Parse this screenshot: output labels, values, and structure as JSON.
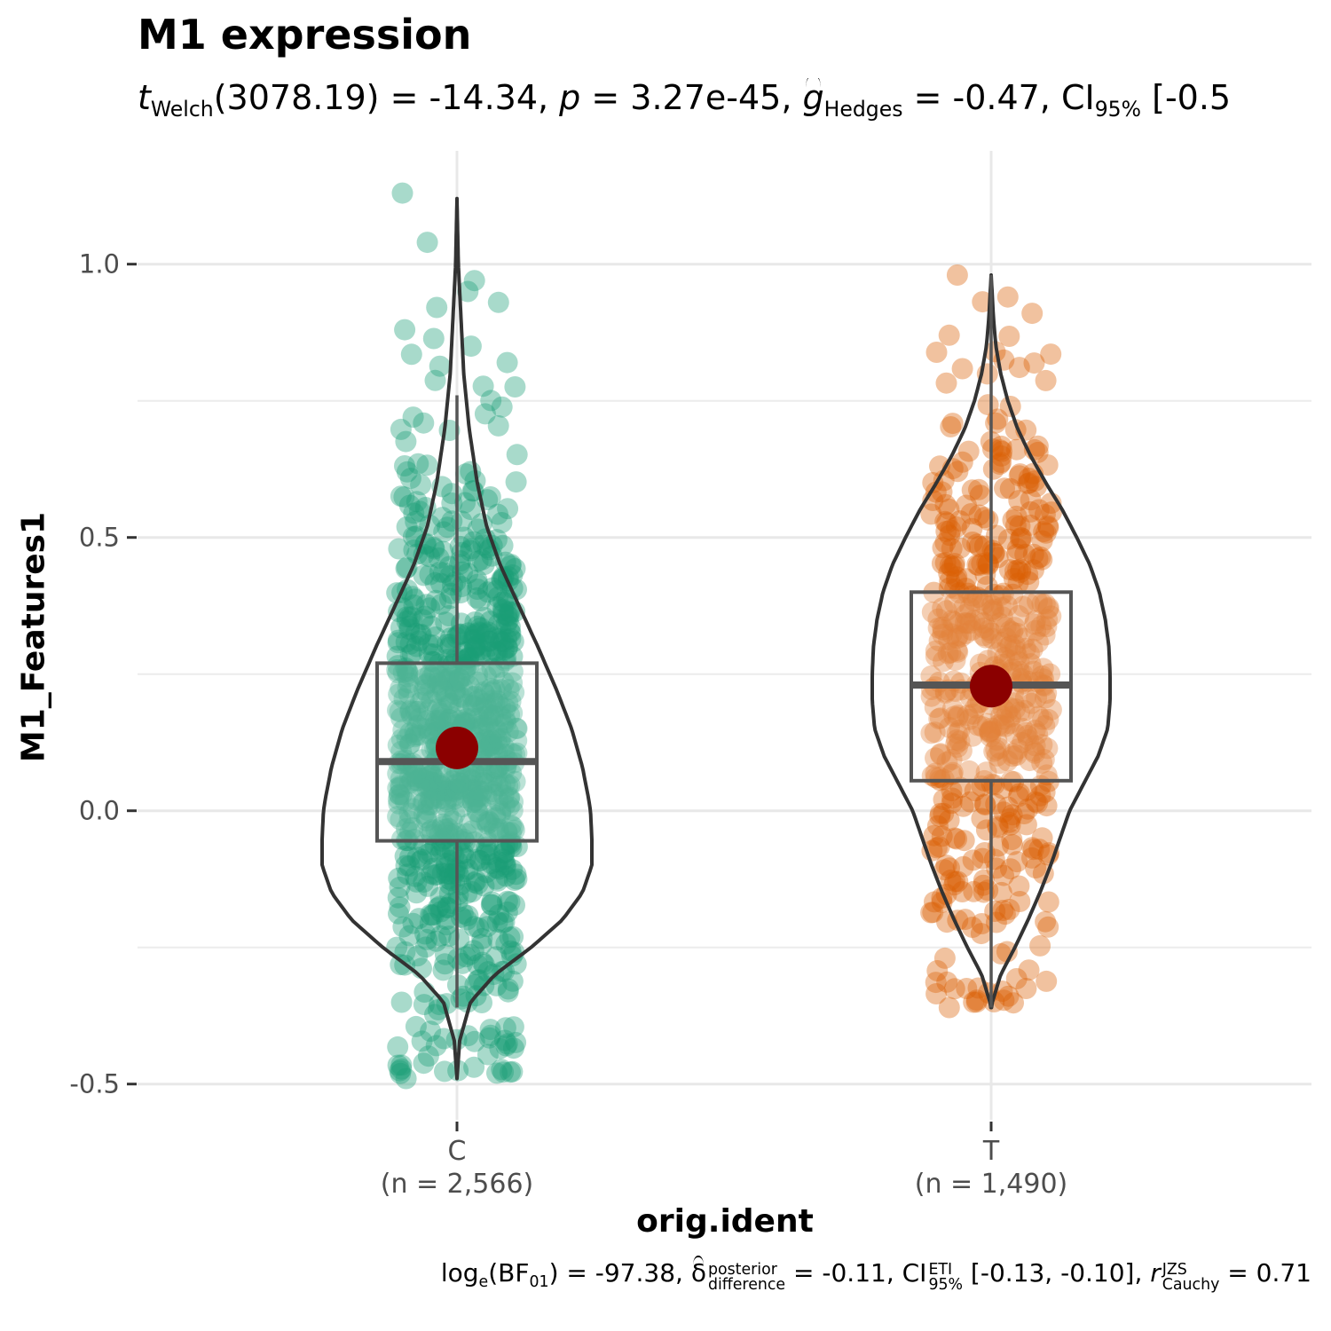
{
  "chart_data": {
    "type": "violin",
    "title": "M1 expression",
    "subtitle": {
      "t_label": "t",
      "t_sub": "Welch",
      "t_stat": "(3078.19) = -14.34, ",
      "p_label": "p",
      "p_text": " = 3.27e-45, ",
      "g_label": "g",
      "g_sub": "Hedges",
      "g_text": " = -0.47, CI",
      "ci_sub": "95%",
      "ci_text": " [-0.5"
    },
    "caption": {
      "log_text": "log",
      "log_sub": "e",
      "bf_text": "(BF",
      "bf_sub": "01",
      "bf_val": ") = -97.38, ",
      "delta": "δ",
      "delta_sup": "posterior",
      "delta_sub": "difference",
      "delta_val": " = -0.11, CI",
      "ci_sup": "ETI",
      "ci_sub": "95%",
      "ci_val": " [-0.13, -0.10], ",
      "r": "r",
      "r_sup": "JZS",
      "r_sub": "Cauchy",
      "r_val": " = 0.71"
    },
    "xlabel": "orig.ident",
    "ylabel": "M1_Features1",
    "ylim": [
      -0.55,
      1.2
    ],
    "yticks": [
      -0.5,
      0.0,
      0.5,
      1.0
    ],
    "ytick_labels": [
      "-0.5",
      "0.0",
      "0.5",
      "1.0"
    ],
    "grid": true,
    "categories": [
      "C",
      "T"
    ],
    "category_counts": [
      "(n = 2,566)",
      "(n = 1,490)"
    ],
    "groups": [
      {
        "name": "C",
        "color": "#1B9E77",
        "n": 2566,
        "min": -0.49,
        "q1": -0.055,
        "median": 0.09,
        "q3": 0.27,
        "max": 1.12,
        "mean": 0.115,
        "whisker_low": -0.36,
        "whisker_high": 0.76,
        "violin_y": [
          -0.49,
          -0.42,
          -0.35,
          -0.3,
          -0.25,
          -0.2,
          -0.15,
          -0.1,
          -0.05,
          0.0,
          0.03,
          0.08,
          0.15,
          0.22,
          0.3,
          0.38,
          0.45,
          0.52,
          0.6,
          0.7,
          0.8,
          0.9,
          1.0,
          1.12
        ],
        "violin_w": [
          0.0,
          0.02,
          0.1,
          0.28,
          0.55,
          0.78,
          0.93,
          1.0,
          1.0,
          0.99,
          0.97,
          0.93,
          0.85,
          0.74,
          0.6,
          0.45,
          0.32,
          0.22,
          0.15,
          0.09,
          0.05,
          0.03,
          0.01,
          0.0
        ]
      },
      {
        "name": "T",
        "color": "#D95F02",
        "n": 1490,
        "min": -0.36,
        "q1": 0.055,
        "median": 0.23,
        "q3": 0.4,
        "max": 0.98,
        "mean": 0.228,
        "whisker_low": -0.36,
        "whisker_high": 0.98,
        "violin_y": [
          -0.365,
          -0.35,
          -0.3,
          -0.25,
          -0.2,
          -0.15,
          -0.1,
          -0.05,
          0.0,
          0.05,
          0.1,
          0.15,
          0.2,
          0.25,
          0.3,
          0.35,
          0.4,
          0.45,
          0.5,
          0.55,
          0.6,
          0.65,
          0.7,
          0.75,
          0.8,
          0.85,
          0.9,
          0.98
        ],
        "violin_w": [
          0.0,
          0.01,
          0.08,
          0.2,
          0.31,
          0.41,
          0.5,
          0.58,
          0.66,
          0.78,
          0.9,
          0.98,
          1.0,
          1.0,
          0.99,
          0.96,
          0.91,
          0.83,
          0.72,
          0.6,
          0.46,
          0.33,
          0.22,
          0.14,
          0.08,
          0.04,
          0.02,
          0.0
        ]
      }
    ]
  }
}
